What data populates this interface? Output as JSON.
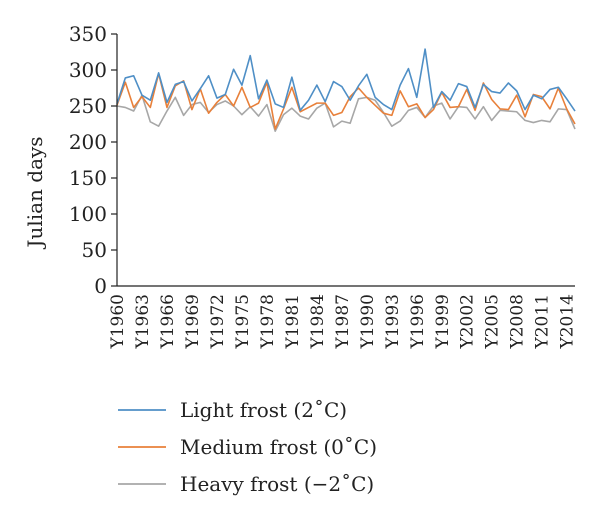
{
  "chart_data": {
    "type": "line",
    "title": "",
    "xlabel": "",
    "ylabel": "Julian days",
    "ylim": [
      0,
      350
    ],
    "yticks": [
      0,
      50,
      100,
      150,
      200,
      250,
      300,
      350
    ],
    "grid": false,
    "legend_position": "bottom",
    "x": [
      "Y1960",
      "Y1961",
      "Y1962",
      "Y1963",
      "Y1964",
      "Y1965",
      "Y1966",
      "Y1967",
      "Y1968",
      "Y1969",
      "Y1970",
      "Y1971",
      "Y1972",
      "Y1973",
      "Y1974",
      "Y1975",
      "Y1976",
      "Y1977",
      "Y1978",
      "Y1979",
      "Y1980",
      "Y1981",
      "Y1982",
      "Y1983",
      "Y1984",
      "Y1985",
      "Y1986",
      "Y1987",
      "Y1988",
      "Y1989",
      "Y1990",
      "Y1991",
      "Y1992",
      "Y1993",
      "Y1994",
      "Y1995",
      "Y1996",
      "Y1997",
      "Y1998",
      "Y1999",
      "Y2000",
      "Y2001",
      "Y2002",
      "Y2003",
      "Y2004",
      "Y2005",
      "Y2006",
      "Y2007",
      "Y2008",
      "Y2009",
      "Y2010",
      "Y2011",
      "Y2012",
      "Y2013",
      "Y2014",
      "Y2015"
    ],
    "xtick_labels": [
      "Y1960",
      "Y1963",
      "Y1966",
      "Y1969",
      "Y1972",
      "Y1975",
      "Y1978",
      "Y1981",
      "Y1984",
      "Y1987",
      "Y1990",
      "Y1993",
      "Y1996",
      "Y1999",
      "Y2002",
      "Y2005",
      "Y2008",
      "Y2011",
      "Y2014"
    ],
    "series": [
      {
        "name": "Light frost (2˚C)",
        "color": "#4f8fc6",
        "values": [
          253,
          289,
          292,
          265,
          258,
          296,
          255,
          280,
          284,
          257,
          274,
          292,
          261,
          266,
          301,
          279,
          320,
          260,
          286,
          253,
          248,
          290,
          244,
          258,
          279,
          256,
          284,
          277,
          258,
          278,
          294,
          262,
          252,
          245,
          279,
          302,
          262,
          329,
          248,
          270,
          258,
          281,
          277,
          248,
          280,
          270,
          268,
          282,
          271,
          245,
          265,
          260,
          273,
          276,
          260,
          243
        ]
      },
      {
        "name": "Medium frost (0˚C)",
        "color": "#e8803a",
        "values": [
          251,
          283,
          248,
          263,
          248,
          295,
          248,
          278,
          285,
          245,
          274,
          240,
          255,
          266,
          250,
          276,
          248,
          254,
          283,
          218,
          246,
          276,
          242,
          248,
          254,
          254,
          237,
          241,
          263,
          275,
          262,
          251,
          240,
          237,
          271,
          249,
          253,
          234,
          245,
          269,
          248,
          249,
          273,
          244,
          282,
          259,
          246,
          245,
          265,
          235,
          266,
          263,
          246,
          275,
          246,
          225
        ]
      },
      {
        "name": "Heavy frost (−2˚C)",
        "color": "#a7a7a7",
        "values": [
          250,
          248,
          243,
          265,
          228,
          222,
          243,
          262,
          237,
          252,
          255,
          241,
          252,
          257,
          250,
          238,
          249,
          236,
          252,
          215,
          238,
          247,
          236,
          232,
          247,
          254,
          221,
          229,
          226,
          260,
          262,
          258,
          241,
          222,
          229,
          244,
          248,
          234,
          250,
          254,
          232,
          249,
          248,
          232,
          249,
          230,
          244,
          243,
          242,
          230,
          227,
          230,
          228,
          246,
          245,
          218
        ]
      }
    ]
  }
}
